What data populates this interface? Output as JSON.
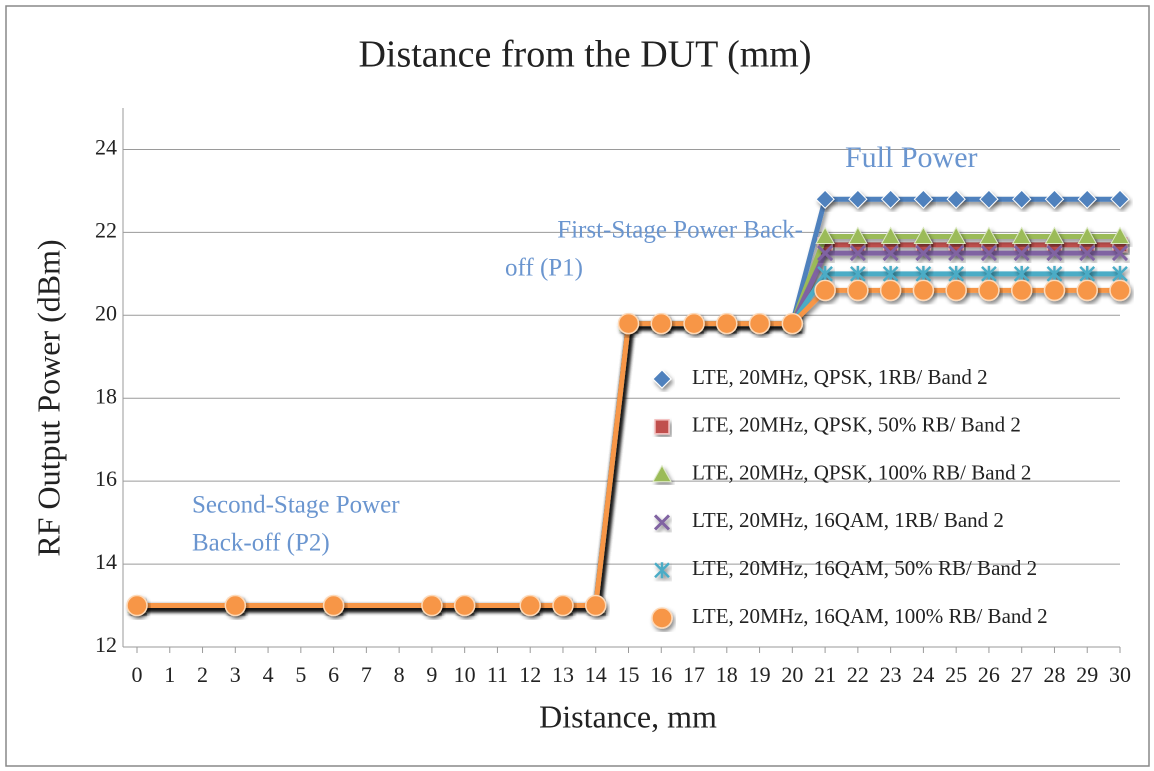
{
  "chart_data": {
    "type": "line",
    "title": "Distance from the DUT (mm)",
    "x_label": "Distance, mm",
    "y_label": "RF Output Power (dBm)",
    "annotations": [
      {
        "lines": [
          "Full Power"
        ]
      },
      {
        "lines": [
          "First-Stage Power Back-",
          "off (P1)"
        ]
      },
      {
        "lines": [
          "Second-Stage Power",
          "Back-off (P2)"
        ]
      }
    ],
    "x": [
      0,
      3,
      6,
      9,
      10,
      12,
      13,
      14,
      15,
      16,
      17,
      18,
      19,
      20,
      21,
      22,
      23,
      24,
      25,
      26,
      27,
      28,
      29,
      30
    ],
    "series": [
      {
        "name": "LTE, 20MHz, QPSK, 1RB/ Band 2",
        "color": "#4f81bd",
        "marker": "diamond",
        "values": [
          13,
          13,
          13,
          13,
          13,
          13,
          13,
          13,
          19.8,
          19.8,
          19.8,
          19.8,
          19.8,
          19.8,
          22.8,
          22.8,
          22.8,
          22.8,
          22.8,
          22.8,
          22.8,
          22.8,
          22.8,
          22.8
        ]
      },
      {
        "name": "LTE, 20MHz, QPSK, 50% RB/ Band 2",
        "color": "#c0504d",
        "marker": "square",
        "values": [
          13,
          13,
          13,
          13,
          13,
          13,
          13,
          13,
          19.8,
          19.8,
          19.8,
          19.8,
          19.8,
          19.8,
          21.7,
          21.7,
          21.7,
          21.7,
          21.7,
          21.7,
          21.7,
          21.7,
          21.7,
          21.7
        ]
      },
      {
        "name": "LTE, 20MHz, QPSK, 100% RB/ Band 2",
        "color": "#9bbb59",
        "marker": "triangle",
        "values": [
          13,
          13,
          13,
          13,
          13,
          13,
          13,
          13,
          19.8,
          19.8,
          19.8,
          19.8,
          19.8,
          19.8,
          21.9,
          21.9,
          21.9,
          21.9,
          21.9,
          21.9,
          21.9,
          21.9,
          21.9,
          21.9
        ]
      },
      {
        "name": "LTE, 20MHz, 16QAM, 1RB/ Band 2",
        "color": "#8064a2",
        "marker": "x",
        "values": [
          13,
          13,
          13,
          13,
          13,
          13,
          13,
          13,
          19.8,
          19.8,
          19.8,
          19.8,
          19.8,
          19.8,
          21.5,
          21.5,
          21.5,
          21.5,
          21.5,
          21.5,
          21.5,
          21.5,
          21.5,
          21.5
        ]
      },
      {
        "name": "LTE, 20MHz, 16QAM, 50% RB/ Band 2",
        "color": "#4bacc6",
        "marker": "star",
        "values": [
          13,
          13,
          13,
          13,
          13,
          13,
          13,
          13,
          19.8,
          19.8,
          19.8,
          19.8,
          19.8,
          19.8,
          21.0,
          21.0,
          21.0,
          21.0,
          21.0,
          21.0,
          21.0,
          21.0,
          21.0,
          21.0
        ]
      },
      {
        "name": "LTE, 20MHz, 16QAM, 100% RB/ Band 2",
        "color": "#f79646",
        "marker": "circle",
        "values": [
          13,
          13,
          13,
          13,
          13,
          13,
          13,
          13,
          19.8,
          19.8,
          19.8,
          19.8,
          19.8,
          19.8,
          20.6,
          20.6,
          20.6,
          20.6,
          20.6,
          20.6,
          20.6,
          20.6,
          20.6,
          20.6
        ]
      }
    ],
    "xlim": [
      0,
      30
    ],
    "xticks": [
      0,
      1,
      2,
      3,
      4,
      5,
      6,
      7,
      8,
      9,
      10,
      11,
      12,
      13,
      14,
      15,
      16,
      17,
      18,
      19,
      20,
      21,
      22,
      23,
      24,
      25,
      26,
      27,
      28,
      29,
      30
    ],
    "ylim": [
      12,
      25
    ],
    "yticks": [
      12,
      14,
      16,
      18,
      20,
      22,
      24
    ],
    "grid": true,
    "legend": "lower right"
  }
}
